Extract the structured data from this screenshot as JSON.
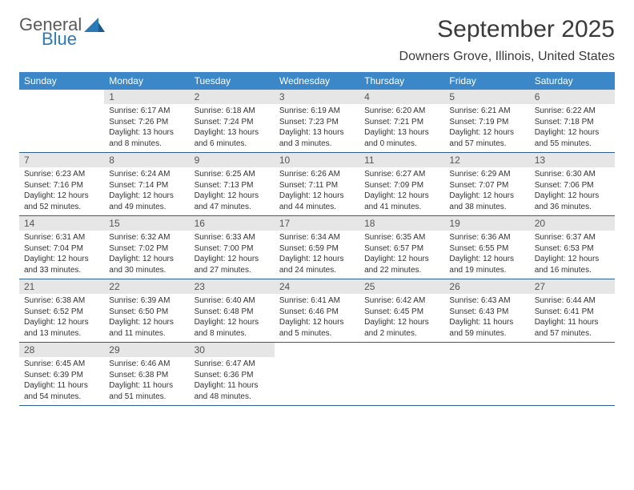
{
  "brand": {
    "name1": "General",
    "name2": "Blue"
  },
  "title": "September 2025",
  "location": "Downers Grove, Illinois, United States",
  "weekdays": [
    "Sunday",
    "Monday",
    "Tuesday",
    "Wednesday",
    "Thursday",
    "Friday",
    "Saturday"
  ],
  "colors": {
    "header_bar": "#3c87c7",
    "header_text": "#ffffff",
    "daynum_bg": "#e6e6e6",
    "daynum_text": "#555555",
    "body_text": "#333333",
    "rule": "#2c5f8d",
    "logo_gray": "#5a5a5a",
    "logo_blue": "#2a7ab8"
  },
  "typography": {
    "title_fontsize": 30,
    "location_fontsize": 16,
    "weekday_fontsize": 12,
    "daynum_fontsize": 12,
    "body_fontsize": 10
  },
  "layout": {
    "columns": 7,
    "rows": 5,
    "leading_blanks": 1
  },
  "days": [
    {
      "n": "1",
      "sunrise": "6:17 AM",
      "sunset": "7:26 PM",
      "daylight": "13 hours and 8 minutes."
    },
    {
      "n": "2",
      "sunrise": "6:18 AM",
      "sunset": "7:24 PM",
      "daylight": "13 hours and 6 minutes."
    },
    {
      "n": "3",
      "sunrise": "6:19 AM",
      "sunset": "7:23 PM",
      "daylight": "13 hours and 3 minutes."
    },
    {
      "n": "4",
      "sunrise": "6:20 AM",
      "sunset": "7:21 PM",
      "daylight": "13 hours and 0 minutes."
    },
    {
      "n": "5",
      "sunrise": "6:21 AM",
      "sunset": "7:19 PM",
      "daylight": "12 hours and 57 minutes."
    },
    {
      "n": "6",
      "sunrise": "6:22 AM",
      "sunset": "7:18 PM",
      "daylight": "12 hours and 55 minutes."
    },
    {
      "n": "7",
      "sunrise": "6:23 AM",
      "sunset": "7:16 PM",
      "daylight": "12 hours and 52 minutes."
    },
    {
      "n": "8",
      "sunrise": "6:24 AM",
      "sunset": "7:14 PM",
      "daylight": "12 hours and 49 minutes."
    },
    {
      "n": "9",
      "sunrise": "6:25 AM",
      "sunset": "7:13 PM",
      "daylight": "12 hours and 47 minutes."
    },
    {
      "n": "10",
      "sunrise": "6:26 AM",
      "sunset": "7:11 PM",
      "daylight": "12 hours and 44 minutes."
    },
    {
      "n": "11",
      "sunrise": "6:27 AM",
      "sunset": "7:09 PM",
      "daylight": "12 hours and 41 minutes."
    },
    {
      "n": "12",
      "sunrise": "6:29 AM",
      "sunset": "7:07 PM",
      "daylight": "12 hours and 38 minutes."
    },
    {
      "n": "13",
      "sunrise": "6:30 AM",
      "sunset": "7:06 PM",
      "daylight": "12 hours and 36 minutes."
    },
    {
      "n": "14",
      "sunrise": "6:31 AM",
      "sunset": "7:04 PM",
      "daylight": "12 hours and 33 minutes."
    },
    {
      "n": "15",
      "sunrise": "6:32 AM",
      "sunset": "7:02 PM",
      "daylight": "12 hours and 30 minutes."
    },
    {
      "n": "16",
      "sunrise": "6:33 AM",
      "sunset": "7:00 PM",
      "daylight": "12 hours and 27 minutes."
    },
    {
      "n": "17",
      "sunrise": "6:34 AM",
      "sunset": "6:59 PM",
      "daylight": "12 hours and 24 minutes."
    },
    {
      "n": "18",
      "sunrise": "6:35 AM",
      "sunset": "6:57 PM",
      "daylight": "12 hours and 22 minutes."
    },
    {
      "n": "19",
      "sunrise": "6:36 AM",
      "sunset": "6:55 PM",
      "daylight": "12 hours and 19 minutes."
    },
    {
      "n": "20",
      "sunrise": "6:37 AM",
      "sunset": "6:53 PM",
      "daylight": "12 hours and 16 minutes."
    },
    {
      "n": "21",
      "sunrise": "6:38 AM",
      "sunset": "6:52 PM",
      "daylight": "12 hours and 13 minutes."
    },
    {
      "n": "22",
      "sunrise": "6:39 AM",
      "sunset": "6:50 PM",
      "daylight": "12 hours and 11 minutes."
    },
    {
      "n": "23",
      "sunrise": "6:40 AM",
      "sunset": "6:48 PM",
      "daylight": "12 hours and 8 minutes."
    },
    {
      "n": "24",
      "sunrise": "6:41 AM",
      "sunset": "6:46 PM",
      "daylight": "12 hours and 5 minutes."
    },
    {
      "n": "25",
      "sunrise": "6:42 AM",
      "sunset": "6:45 PM",
      "daylight": "12 hours and 2 minutes."
    },
    {
      "n": "26",
      "sunrise": "6:43 AM",
      "sunset": "6:43 PM",
      "daylight": "11 hours and 59 minutes."
    },
    {
      "n": "27",
      "sunrise": "6:44 AM",
      "sunset": "6:41 PM",
      "daylight": "11 hours and 57 minutes."
    },
    {
      "n": "28",
      "sunrise": "6:45 AM",
      "sunset": "6:39 PM",
      "daylight": "11 hours and 54 minutes."
    },
    {
      "n": "29",
      "sunrise": "6:46 AM",
      "sunset": "6:38 PM",
      "daylight": "11 hours and 51 minutes."
    },
    {
      "n": "30",
      "sunrise": "6:47 AM",
      "sunset": "6:36 PM",
      "daylight": "11 hours and 48 minutes."
    }
  ],
  "labels": {
    "sunrise": "Sunrise:",
    "sunset": "Sunset:",
    "daylight": "Daylight:"
  }
}
